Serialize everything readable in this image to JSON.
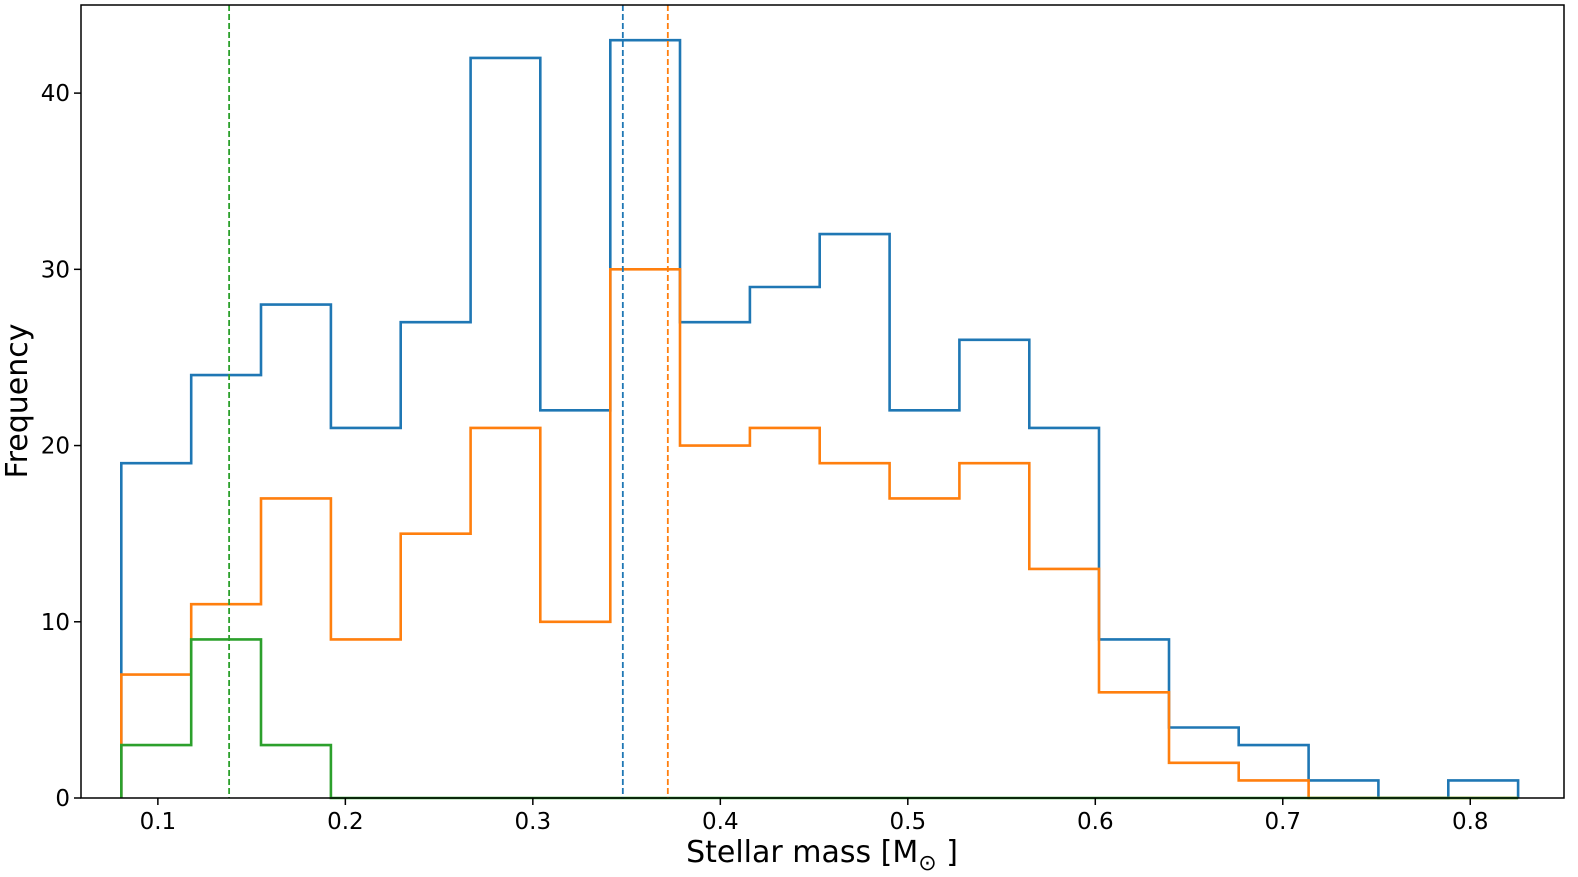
{
  "chart_data": {
    "type": "histogram",
    "xlabel": "Stellar mass [M",
    "xlabel_subscript": "⊙",
    "xlabel_close": " ]",
    "ylabel": "Frequency",
    "xlim": [
      0.059,
      0.85
    ],
    "ylim": [
      0,
      45
    ],
    "grid": false,
    "legend": null,
    "xticks": [
      0.1,
      0.2,
      0.3,
      0.4,
      0.5,
      0.6,
      0.7,
      0.8
    ],
    "xtick_labels": [
      "0.1",
      "0.2",
      "0.3",
      "0.4",
      "0.5",
      "0.6",
      "0.7",
      "0.8"
    ],
    "yticks": [
      0,
      10,
      20,
      30,
      40
    ],
    "ytick_labels": [
      "0",
      "10",
      "20",
      "30",
      "40"
    ],
    "bin_edges": [
      0.0805,
      0.1178,
      0.155,
      0.1923,
      0.2295,
      0.2668,
      0.304,
      0.3413,
      0.3785,
      0.4158,
      0.453,
      0.4903,
      0.5275,
      0.5648,
      0.602,
      0.6393,
      0.6765,
      0.7138,
      0.751,
      0.7883,
      0.8255
    ],
    "series": [
      {
        "color": "#1f77b4",
        "counts": [
          19,
          24,
          28,
          21,
          27,
          42,
          22,
          43,
          27,
          29,
          32,
          22,
          26,
          21,
          9,
          4,
          3,
          1,
          0,
          1
        ],
        "median": 0.348
      },
      {
        "color": "#ff7f0e",
        "counts": [
          7,
          11,
          17,
          9,
          15,
          21,
          10,
          30,
          20,
          21,
          19,
          17,
          19,
          13,
          6,
          2,
          1,
          0,
          0,
          0
        ],
        "median": 0.372
      },
      {
        "color": "#2ca02c",
        "counts": [
          3,
          9,
          3,
          0,
          0,
          0,
          0,
          0,
          0,
          0,
          0,
          0,
          0,
          0,
          0,
          0,
          0,
          0,
          0,
          0
        ],
        "median": 0.138
      }
    ]
  }
}
